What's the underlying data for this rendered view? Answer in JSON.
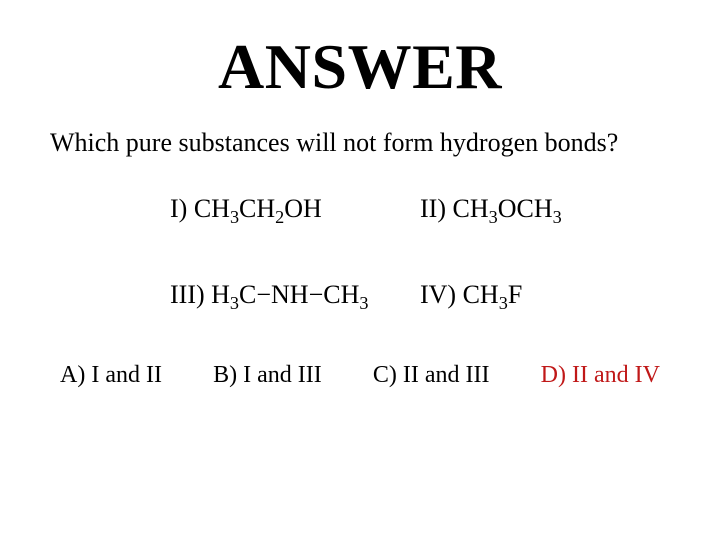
{
  "title": "ANSWER",
  "question": "Which pure substances will not form hydrogen bonds?",
  "options": {
    "I": {
      "label": "I)",
      "formula_html": "CH<sub>3</sub>CH<sub>2</sub>OH"
    },
    "II": {
      "label": "II)",
      "formula_html": "CH<sub>3</sub>OCH<sub>3</sub>"
    },
    "III": {
      "label": "III)",
      "formula_html": "H<sub>3</sub>C−NH−CH<sub>3</sub>"
    },
    "IV": {
      "label": "IV)",
      "formula_html": "CH<sub>3</sub>F"
    }
  },
  "answers": {
    "A": "A) I and II",
    "B": "B) I and III",
    "C": "C) II and III",
    "D": "D) II and IV"
  },
  "correct_answer": "D",
  "colors": {
    "text": "#000000",
    "highlight": "#c01818",
    "background": "#ffffff"
  },
  "typography": {
    "title_fontsize": 64,
    "body_fontsize": 26,
    "answers_fontsize": 24,
    "font_family": "Times New Roman"
  }
}
